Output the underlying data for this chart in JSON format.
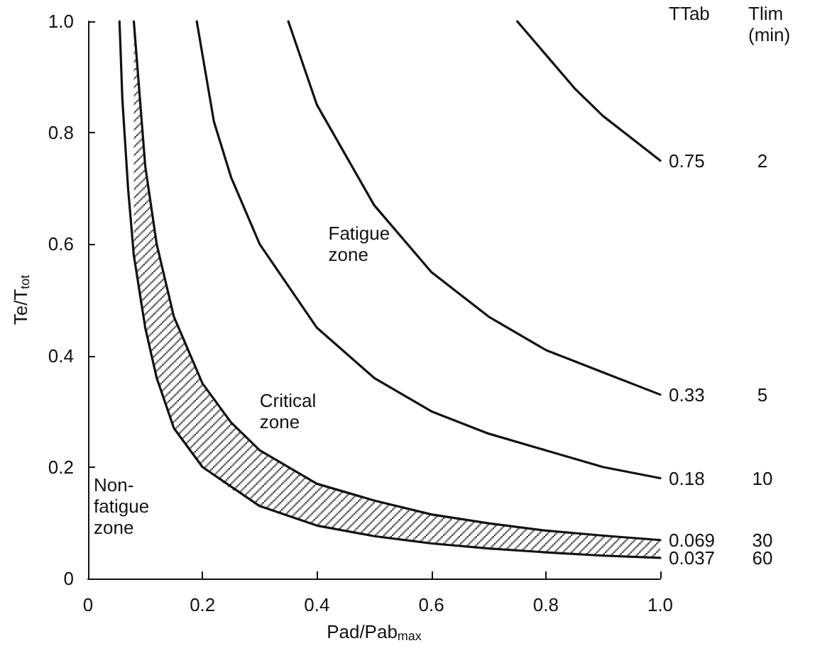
{
  "chart_data": {
    "type": "line",
    "xlabel": "Pad/Pab$_{max}$",
    "ylabel": "Te/T$_{tot}$",
    "xlim": [
      0,
      1
    ],
    "ylim": [
      0,
      1
    ],
    "xticks": [
      0,
      0.2,
      0.4,
      0.6,
      0.8,
      {
        "value": 1,
        "label": "1.0"
      }
    ],
    "yticks": [
      0,
      0.2,
      0.4,
      0.6,
      0.8,
      {
        "value": 1,
        "label": "1.0"
      }
    ],
    "grid": false,
    "legend": false,
    "marker": "none",
    "line_style": "solid",
    "series": [
      {
        "name": "0.75",
        "color": "#111111",
        "x": [
          0.75,
          0.8,
          0.85,
          0.9,
          0.95,
          1
        ],
        "values": [
          1,
          0.94,
          0.88,
          0.83,
          0.79,
          0.75
        ]
      },
      {
        "name": "0.33",
        "color": "#111111",
        "x": [
          0.35,
          0.4,
          0.5,
          0.6,
          0.7,
          0.8,
          0.9,
          1
        ],
        "values": [
          1,
          0.85,
          0.67,
          0.55,
          0.47,
          0.41,
          0.37,
          0.33
        ]
      },
      {
        "name": "0.18",
        "color": "#111111",
        "x": [
          0.19,
          0.22,
          0.25,
          0.3,
          0.4,
          0.5,
          0.6,
          0.7,
          0.8,
          0.9,
          1
        ],
        "values": [
          1,
          0.82,
          0.72,
          0.6,
          0.45,
          0.36,
          0.3,
          0.26,
          0.23,
          0.2,
          0.18
        ]
      },
      {
        "name": "0.069",
        "color": "#111111",
        "x": [
          0.08,
          0.09,
          0.1,
          0.12,
          0.15,
          0.2,
          0.25,
          0.3,
          0.4,
          0.5,
          0.6,
          0.7,
          0.8,
          0.9,
          1
        ],
        "values": [
          1,
          0.87,
          0.74,
          0.6,
          0.47,
          0.35,
          0.28,
          0.23,
          0.17,
          0.14,
          0.115,
          0.099,
          0.086,
          0.077,
          0.069
        ],
        "lower": [
          0.58,
          0.5,
          0.45,
          0.36,
          0.27,
          0.2,
          0.16,
          0.13,
          0.095,
          0.076,
          0.063,
          0.054,
          0.047,
          0.041,
          0.037
        ],
        "upper": [
          1,
          0.87,
          0.74,
          0.6,
          0.47,
          0.35,
          0.28,
          0.23,
          0.17,
          0.14,
          0.115,
          0.099,
          0.086,
          0.077,
          0.069
        ]
      },
      {
        "name": "0.037",
        "color": "#111111",
        "x": [
          0.055,
          0.06,
          0.07,
          0.08,
          0.1,
          0.12,
          0.15,
          0.2,
          0.3,
          0.4,
          0.5,
          0.6,
          0.7,
          0.8,
          0.9,
          1
        ],
        "values": [
          1,
          0.86,
          0.7,
          0.58,
          0.45,
          0.36,
          0.27,
          0.2,
          0.13,
          0.095,
          0.076,
          0.063,
          0.054,
          0.047,
          0.041,
          0.037
        ]
      }
    ],
    "annotations": [
      "TTab",
      "Tlim\n(min)",
      "2",
      "5",
      "10",
      "30",
      "60",
      "Fatigue\nzone",
      "Critical\nzone",
      "Non-\nfatigue\nzone"
    ]
  }
}
